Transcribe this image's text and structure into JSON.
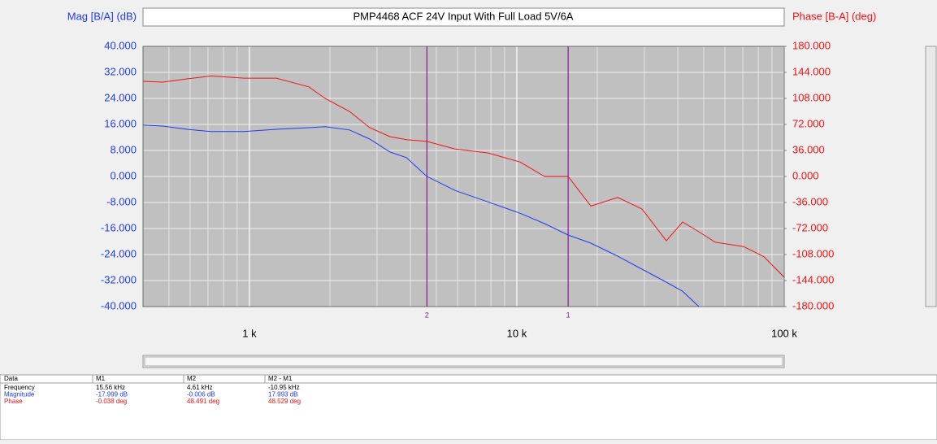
{
  "chart_data": {
    "type": "line",
    "title": "PMP4468 ACF 24V Input With Full Load 5V/6A",
    "ylabel": "Mag [B/A] (dB)",
    "y2label": "Phase [B-A] (deg)",
    "xscale": "log",
    "grid": true,
    "xlim": [
      400,
      100000
    ],
    "xticks": [
      {
        "value": 1000,
        "label": "1 k"
      },
      {
        "value": 10000,
        "label": "10 k"
      },
      {
        "value": 100000,
        "label": "100 k"
      }
    ],
    "xgrid": [
      500,
      600,
      700,
      800,
      900,
      2000,
      3000,
      4000,
      5000,
      6000,
      7000,
      8000,
      9000,
      20000,
      30000,
      40000,
      50000,
      60000,
      70000,
      80000,
      90000
    ],
    "ylim": [
      -40,
      40
    ],
    "yticks": [
      {
        "value": 40,
        "label": "40.000"
      },
      {
        "value": 32,
        "label": "32.000"
      },
      {
        "value": 24,
        "label": "24.000"
      },
      {
        "value": 16,
        "label": "16.000"
      },
      {
        "value": 8,
        "label": "8.000"
      },
      {
        "value": 0,
        "label": "0.000"
      },
      {
        "value": -8,
        "label": "-8.000"
      },
      {
        "value": -16,
        "label": "-16.000"
      },
      {
        "value": -24,
        "label": "-24.000"
      },
      {
        "value": -32,
        "label": "-32.000"
      },
      {
        "value": -40,
        "label": "-40.000"
      }
    ],
    "y2lim": [
      -180,
      180
    ],
    "y2ticks": [
      {
        "value": 180,
        "label": "180.000"
      },
      {
        "value": 144,
        "label": "144.000"
      },
      {
        "value": 108,
        "label": "108.000"
      },
      {
        "value": 72,
        "label": "72.000"
      },
      {
        "value": 36,
        "label": "36.000"
      },
      {
        "value": 0,
        "label": "0.000"
      },
      {
        "value": -36,
        "label": "-36.000"
      },
      {
        "value": -72,
        "label": "-72.000"
      },
      {
        "value": -108,
        "label": "-108.000"
      },
      {
        "value": -144,
        "label": "-144.000"
      },
      {
        "value": -180,
        "label": "-180.000"
      }
    ],
    "x": [
      400,
      473,
      584,
      720,
      953,
      1260,
      1667,
      1918,
      2366,
      2818,
      3357,
      3864,
      4610,
      5875,
      7780,
      10280,
      12700,
      15560,
      18920,
      23830,
      29380,
      36220,
      41690,
      47970,
      55200,
      70470,
      83950,
      100000
    ],
    "series": [
      {
        "name": "Magnitude",
        "color": "#1f3cf0",
        "axis": "y",
        "values": [
          15.8,
          15.5,
          14.5,
          13.8,
          13.8,
          14.5,
          15,
          15.3,
          14.3,
          11.5,
          7.5,
          5.8,
          0,
          -4.3,
          -7.8,
          -11.3,
          -14.5,
          -18,
          -20.5,
          -24.5,
          -28.5,
          -32.5,
          -35.3,
          -40,
          null,
          null,
          null,
          null
        ]
      },
      {
        "name": "Phase",
        "color": "#f01414",
        "axis": "y2",
        "values": [
          131.6,
          130.5,
          135,
          139,
          136,
          136,
          124,
          108,
          90,
          67.5,
          55,
          51,
          48.5,
          38,
          32.6,
          20,
          0,
          0,
          -41,
          -29,
          -45,
          -89,
          -63,
          -76.5,
          -91,
          -97,
          -111,
          -139.5
        ]
      }
    ],
    "markers": [
      {
        "label": "1",
        "x": 15560
      },
      {
        "label": "2",
        "x": 4610
      }
    ],
    "marker_color": "#8a1a8a"
  },
  "marker_table": {
    "headers": [
      "Data",
      "M1",
      "M2",
      "M2 - M1"
    ],
    "rows": [
      {
        "color": "#000000",
        "cells": [
          "Frequency",
          "15.56 kHz",
          "4.61 kHz",
          "-10.95 kHz"
        ]
      },
      {
        "color": "#1f3cf0",
        "cells": [
          "Magnitude",
          "-17.999 dB",
          "-0.006 dB",
          "17.993 dB"
        ]
      },
      {
        "color": "#f01414",
        "cells": [
          "Phase",
          "-0.038 deg",
          "48.491 deg",
          "48.529 deg"
        ]
      }
    ]
  }
}
